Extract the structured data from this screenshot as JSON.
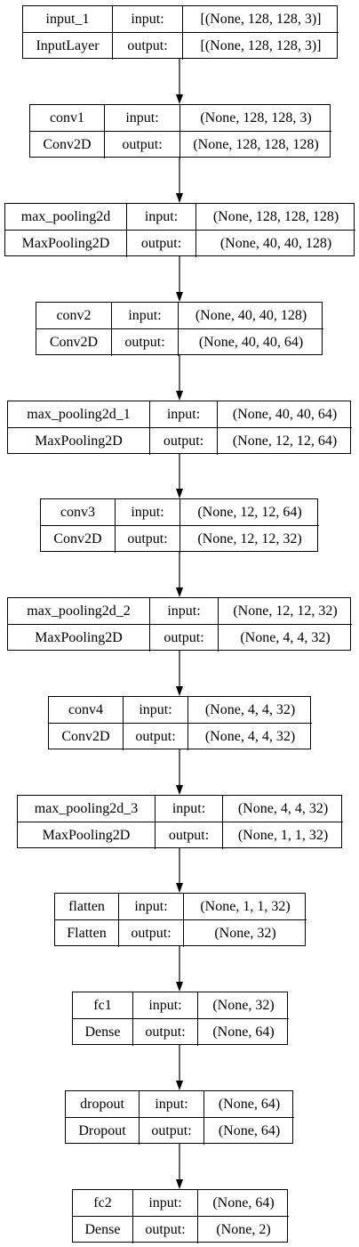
{
  "nodes": [
    {
      "name": "input_1",
      "type": "InputLayer",
      "input_label": "input:",
      "output_label": "output:",
      "input_shape": "[(None, 128, 128, 3)]",
      "output_shape": "[(None, 128, 128, 3)]"
    },
    {
      "name": "conv1",
      "type": "Conv2D",
      "input_label": "input:",
      "output_label": "output:",
      "input_shape": "(None, 128, 128, 3)",
      "output_shape": "(None, 128, 128, 128)"
    },
    {
      "name": "max_pooling2d",
      "type": "MaxPooling2D",
      "input_label": "input:",
      "output_label": "output:",
      "input_shape": "(None, 128, 128, 128)",
      "output_shape": "(None, 40, 40, 128)"
    },
    {
      "name": "conv2",
      "type": "Conv2D",
      "input_label": "input:",
      "output_label": "output:",
      "input_shape": "(None, 40, 40, 128)",
      "output_shape": "(None, 40, 40, 64)"
    },
    {
      "name": "max_pooling2d_1",
      "type": "MaxPooling2D",
      "input_label": "input:",
      "output_label": "output:",
      "input_shape": "(None, 40, 40, 64)",
      "output_shape": "(None, 12, 12, 64)"
    },
    {
      "name": "conv3",
      "type": "Conv2D",
      "input_label": "input:",
      "output_label": "output:",
      "input_shape": "(None, 12, 12, 64)",
      "output_shape": "(None, 12, 12, 32)"
    },
    {
      "name": "max_pooling2d_2",
      "type": "MaxPooling2D",
      "input_label": "input:",
      "output_label": "output:",
      "input_shape": "(None, 12, 12, 32)",
      "output_shape": "(None, 4, 4, 32)"
    },
    {
      "name": "conv4",
      "type": "Conv2D",
      "input_label": "input:",
      "output_label": "output:",
      "input_shape": "(None, 4, 4, 32)",
      "output_shape": "(None, 4, 4, 32)"
    },
    {
      "name": "max_pooling2d_3",
      "type": "MaxPooling2D",
      "input_label": "input:",
      "output_label": "output:",
      "input_shape": "(None, 4, 4, 32)",
      "output_shape": "(None, 1, 1, 32)"
    },
    {
      "name": "flatten",
      "type": "Flatten",
      "input_label": "input:",
      "output_label": "output:",
      "input_shape": "(None, 1, 1, 32)",
      "output_shape": "(None, 32)"
    },
    {
      "name": "fc1",
      "type": "Dense",
      "input_label": "input:",
      "output_label": "output:",
      "input_shape": "(None, 32)",
      "output_shape": "(None, 64)"
    },
    {
      "name": "dropout",
      "type": "Dropout",
      "input_label": "input:",
      "output_label": "output:",
      "input_shape": "(None, 64)",
      "output_shape": "(None, 64)"
    },
    {
      "name": "fc2",
      "type": "Dense",
      "input_label": "input:",
      "output_label": "output:",
      "input_shape": "(None, 64)",
      "output_shape": "(None, 2)"
    }
  ],
  "edges": [
    {
      "from": "input_1",
      "to": "conv1"
    },
    {
      "from": "conv1",
      "to": "max_pooling2d"
    },
    {
      "from": "max_pooling2d",
      "to": "conv2"
    },
    {
      "from": "conv2",
      "to": "max_pooling2d_1"
    },
    {
      "from": "max_pooling2d_1",
      "to": "conv3"
    },
    {
      "from": "conv3",
      "to": "max_pooling2d_2"
    },
    {
      "from": "max_pooling2d_2",
      "to": "conv4"
    },
    {
      "from": "conv4",
      "to": "max_pooling2d_3"
    },
    {
      "from": "max_pooling2d_3",
      "to": "flatten"
    },
    {
      "from": "flatten",
      "to": "fc1"
    },
    {
      "from": "fc1",
      "to": "dropout"
    },
    {
      "from": "dropout",
      "to": "fc2"
    }
  ],
  "colors": {
    "line": "#000000",
    "background": "#ffffff",
    "node_fill": "#ffffff"
  }
}
